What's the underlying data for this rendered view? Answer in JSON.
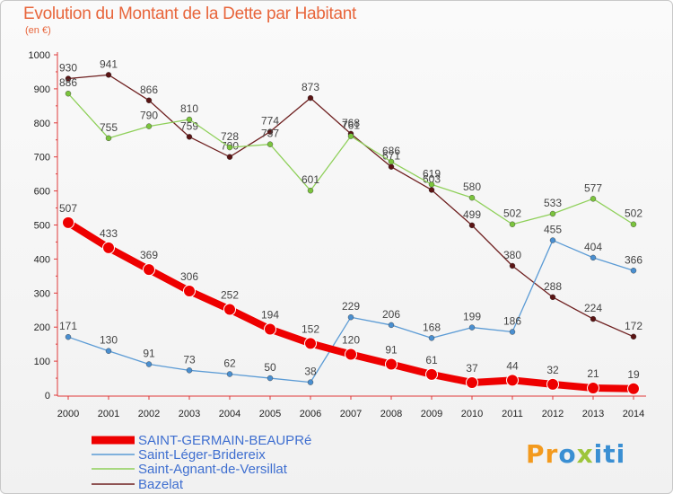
{
  "chart_data": {
    "type": "line",
    "title": "Evolution du Montant de la Dette par Habitant",
    "subtitle": "(en €)",
    "x": [
      "2000",
      "2001",
      "2002",
      "2003",
      "2004",
      "2005",
      "2006",
      "2007",
      "2008",
      "2009",
      "2010",
      "2011",
      "2012",
      "2013",
      "2014"
    ],
    "ylim": [
      0,
      1000
    ],
    "yticks": [
      0,
      100,
      200,
      300,
      400,
      500,
      600,
      700,
      800,
      900,
      1000
    ],
    "grid": false,
    "legend_position": "bottom-left",
    "series": [
      {
        "name": "Bazelat",
        "color": "#6e1f1f",
        "values": [
          930,
          941,
          866,
          759,
          700,
          774,
          873,
          768,
          671,
          603,
          499,
          380,
          288,
          224,
          172
        ],
        "labels": [
          "930",
          "941",
          "866",
          "759",
          "700",
          "774",
          "873",
          "768",
          "671",
          "603",
          "499",
          "380",
          "288",
          "224",
          "172"
        ]
      },
      {
        "name": "Saint-Agnant-de-Versillat",
        "color": "#8fd05a",
        "values": [
          886,
          755,
          790,
          810,
          728,
          737,
          601,
          761,
          686,
          619,
          580,
          502,
          533,
          577,
          502
        ],
        "labels": [
          "886",
          "755",
          "790",
          "810",
          "728",
          "737",
          "601",
          "761",
          "686",
          "619",
          "580",
          "502",
          "533",
          "577",
          "502"
        ]
      },
      {
        "name": "Saint-Léger-Bridereix",
        "color": "#5b9bd5",
        "values": [
          171,
          130,
          91,
          73,
          62,
          50,
          38,
          229,
          206,
          168,
          199,
          186,
          455,
          404,
          366
        ],
        "labels": [
          "171",
          "130",
          "91",
          "73",
          "62",
          "50",
          "38",
          "229",
          "206",
          "168",
          "199",
          "186",
          "455",
          "404",
          "366"
        ]
      },
      {
        "name": "SAINT-GERMAIN-BEAUPRé",
        "color": "#ee0000",
        "values": [
          507,
          433,
          369,
          306,
          252,
          194,
          152,
          120,
          91,
          61,
          37,
          44,
          32,
          21,
          19
        ],
        "labels": [
          "507",
          "433",
          "369",
          "306",
          "252",
          "194",
          "152",
          "120",
          "91",
          "61",
          "37",
          "44",
          "32",
          "21",
          "19"
        ]
      }
    ],
    "legend_order": [
      "SAINT-GERMAIN-BEAUPRé",
      "Saint-Léger-Bridereix",
      "Saint-Agnant-de-Versillat",
      "Bazelat"
    ]
  },
  "logo": {
    "part1": "Pr",
    "part2": "o",
    "part3": "x",
    "part4": "iti"
  }
}
